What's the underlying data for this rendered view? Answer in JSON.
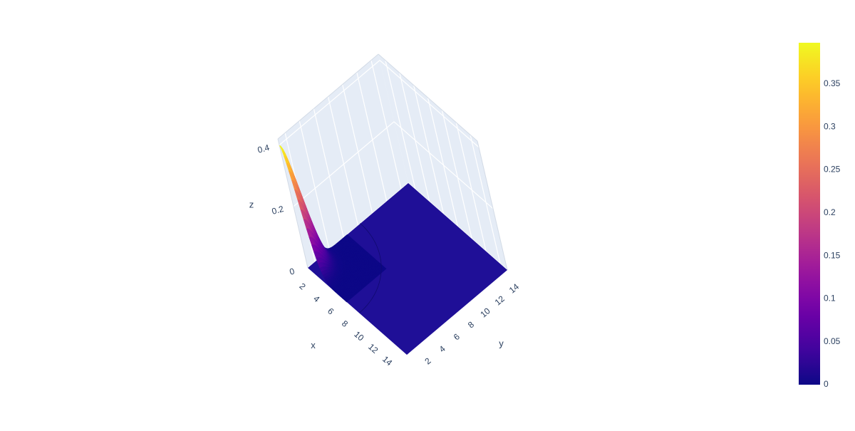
{
  "chart_data": {
    "type": "surface",
    "title": "",
    "x": {
      "title": "x",
      "range": [
        1,
        15
      ],
      "tickvals": [
        2,
        4,
        6,
        8,
        10,
        12,
        14
      ],
      "ticktext": [
        "2",
        "4",
        "6",
        "8",
        "10",
        "12",
        "14"
      ]
    },
    "y": {
      "title": "y",
      "range": [
        1,
        15
      ],
      "tickvals": [
        2,
        4,
        6,
        8,
        10,
        12,
        14
      ],
      "ticktext": [
        "2",
        "4",
        "6",
        "8",
        "10",
        "12",
        "14"
      ]
    },
    "z": {
      "title": "z",
      "range": [
        0,
        0.42
      ],
      "tickvals": [
        0,
        0.2,
        0.4
      ],
      "ticktext": [
        "0",
        "0.2",
        "0.4"
      ]
    },
    "surface": {
      "function": "gaussian",
      "peak": 0.398,
      "center_x": 1,
      "center_y": 1,
      "sigma": 1
    },
    "colorscale": "Plasma",
    "colorbar": {
      "min": 0,
      "max": 0.398,
      "tickvals": [
        0,
        0.05,
        0.1,
        0.15,
        0.2,
        0.25,
        0.3,
        0.35
      ],
      "ticktext": [
        "0",
        "0.05",
        "0.1",
        "0.15",
        "0.2",
        "0.25",
        "0.3",
        "0.35"
      ]
    },
    "colors": {
      "plasma": [
        "#0d0887",
        "#46039f",
        "#7201a8",
        "#9c179e",
        "#bd3786",
        "#d8576b",
        "#ed7953",
        "#fb9f3a",
        "#fdca26",
        "#f0f921"
      ],
      "floor": "#1f0f97",
      "grid": "#ffffff",
      "pane": "#e5ecf6"
    }
  }
}
